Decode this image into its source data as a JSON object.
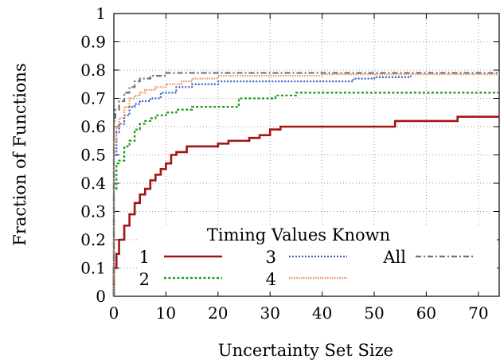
{
  "chart_data": {
    "type": "line",
    "title": "",
    "xlabel": "Uncertainty Set Size",
    "ylabel": "Fraction of Functions",
    "xlim": [
      0,
      74
    ],
    "ylim": [
      0,
      1
    ],
    "x_ticks": [
      0,
      10,
      20,
      30,
      40,
      50,
      60,
      70
    ],
    "y_ticks": [
      0,
      0.1,
      0.2,
      0.3,
      0.4,
      0.5,
      0.6,
      0.7,
      0.8,
      0.9,
      1
    ],
    "grid": true,
    "step": true,
    "legend": {
      "title": "Timing Values Known",
      "placement": "bottom-right"
    },
    "series": [
      {
        "name": "1",
        "color": "#a31515",
        "dash": "solid",
        "x": [
          0,
          0.5,
          1,
          2,
          3,
          4,
          5,
          6,
          7,
          8,
          9,
          10,
          11,
          12,
          14,
          16,
          18,
          20,
          22,
          24,
          26,
          28,
          30,
          32,
          35,
          40,
          45,
          50,
          54,
          60,
          66,
          74
        ],
        "y": [
          0.1,
          0.15,
          0.2,
          0.25,
          0.29,
          0.33,
          0.36,
          0.38,
          0.41,
          0.43,
          0.45,
          0.47,
          0.5,
          0.51,
          0.53,
          0.53,
          0.53,
          0.54,
          0.55,
          0.55,
          0.56,
          0.57,
          0.59,
          0.6,
          0.6,
          0.6,
          0.6,
          0.6,
          0.62,
          0.62,
          0.635,
          0.635
        ]
      },
      {
        "name": "2",
        "color": "#1a9a1a",
        "dash": "3 2.5",
        "x": [
          0,
          0.5,
          1,
          2,
          3,
          4,
          5,
          6,
          7,
          8,
          9,
          10,
          12,
          15,
          20,
          24,
          31,
          35,
          40,
          50,
          60,
          74
        ],
        "y": [
          0.38,
          0.47,
          0.48,
          0.53,
          0.55,
          0.59,
          0.61,
          0.62,
          0.63,
          0.64,
          0.64,
          0.65,
          0.66,
          0.67,
          0.67,
          0.7,
          0.71,
          0.72,
          0.72,
          0.72,
          0.72,
          0.72
        ]
      },
      {
        "name": "3",
        "color": "#3a5fc8",
        "dash": "2 2",
        "x": [
          0,
          0.5,
          1,
          2,
          3,
          4,
          5,
          7,
          9,
          12,
          15,
          20,
          25,
          30,
          35,
          40,
          46,
          50,
          57
        ],
        "y": [
          0.5,
          0.58,
          0.61,
          0.64,
          0.67,
          0.68,
          0.69,
          0.7,
          0.72,
          0.74,
          0.75,
          0.76,
          0.76,
          0.76,
          0.76,
          0.76,
          0.77,
          0.775,
          0.78
        ]
      },
      {
        "name": "4",
        "color": "#e8935a",
        "dash": "1.5 1.5",
        "x": [
          0,
          0.5,
          1,
          2,
          3,
          4,
          5,
          6,
          8,
          10,
          13,
          15,
          20,
          30,
          40,
          50,
          60,
          74
        ],
        "y": [
          0.55,
          0.6,
          0.63,
          0.67,
          0.7,
          0.71,
          0.72,
          0.73,
          0.74,
          0.75,
          0.76,
          0.77,
          0.78,
          0.78,
          0.785,
          0.785,
          0.785,
          0.785
        ]
      },
      {
        "name": "All",
        "color": "#707070",
        "dash": "7 3 2 3",
        "x": [
          0,
          0.3,
          1,
          2,
          3,
          4,
          5,
          7,
          10,
          15,
          20,
          30,
          40,
          50,
          60,
          74
        ],
        "y": [
          0.62,
          0.66,
          0.69,
          0.72,
          0.74,
          0.76,
          0.77,
          0.78,
          0.79,
          0.79,
          0.79,
          0.79,
          0.79,
          0.79,
          0.79,
          0.79
        ]
      }
    ]
  }
}
